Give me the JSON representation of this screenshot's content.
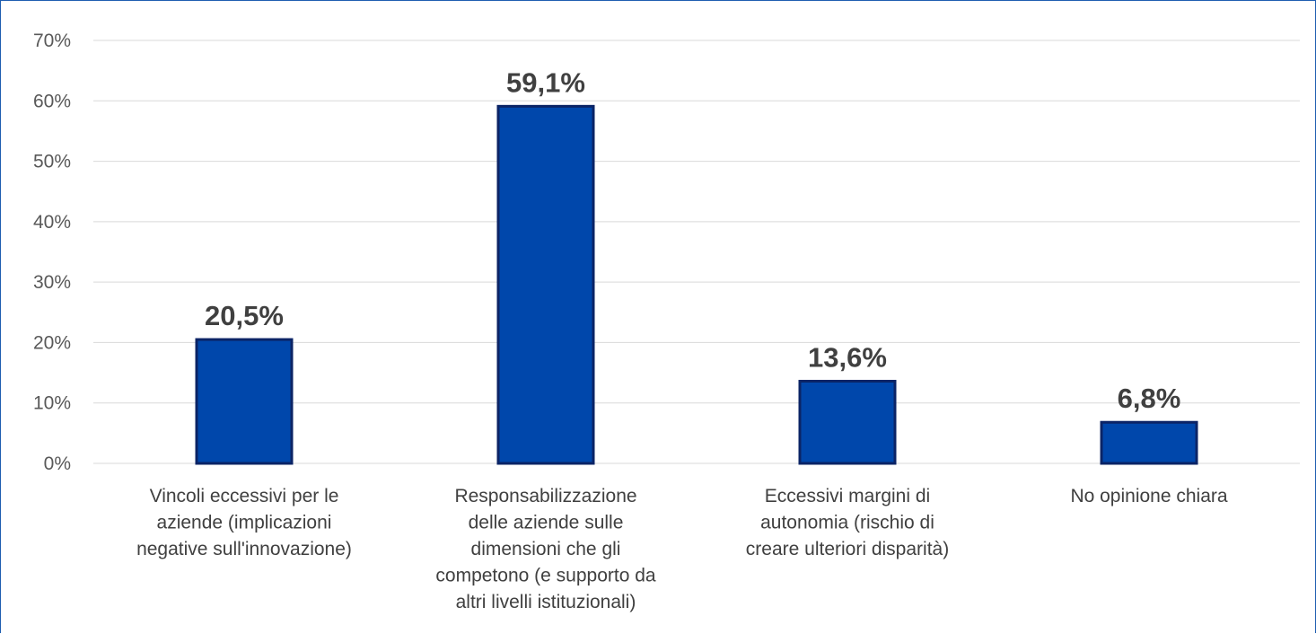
{
  "chart_data": {
    "type": "bar",
    "title": "",
    "xlabel": "",
    "ylabel": "",
    "ylim": [
      0,
      70
    ],
    "y_tick_step": 10,
    "y_tick_suffix": "%",
    "grid": true,
    "legend": "none",
    "categories": [
      [
        "Vincoli eccessivi per le",
        "aziende (implicazioni",
        "negative sull'innovazione)"
      ],
      [
        "Responsabilizzazione",
        "delle aziende sulle",
        "dimensioni che gli",
        "competono (e supporto da",
        "altri livelli istituzionali)"
      ],
      [
        "Eccessivi margini di",
        "autonomia (rischio di",
        "creare ulteriori disparità)"
      ],
      [
        "No opinione chiara"
      ]
    ],
    "values": [
      20.5,
      59.1,
      13.6,
      6.8
    ],
    "data_labels": [
      "20,5%",
      "59,1%",
      "13,6%",
      "6,8%"
    ],
    "colors": {
      "bar_fill": "#0047AB",
      "bar_stroke": "#0B2466",
      "frame": "#1F5EB0",
      "grid": "#D9D9D9"
    }
  }
}
